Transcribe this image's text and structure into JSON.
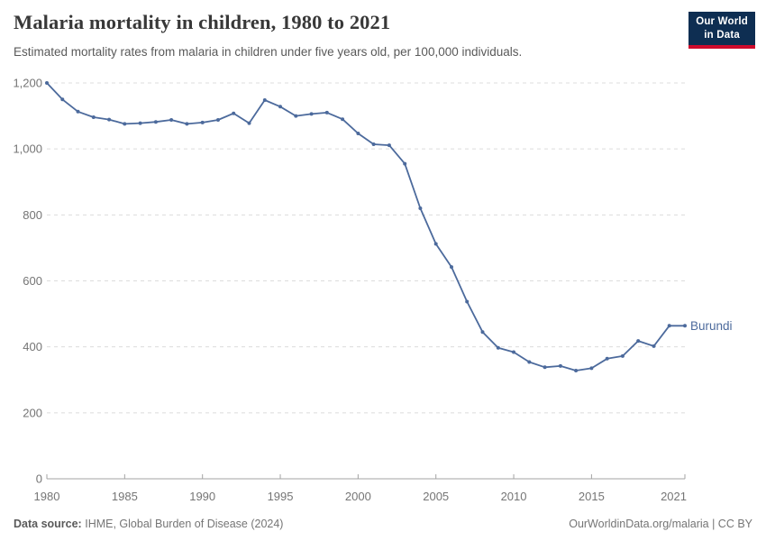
{
  "header": {
    "title": "Malaria mortality in children, 1980 to 2021",
    "subtitle": "Estimated mortality rates from malaria in children under five years old, per 100,000 individuals."
  },
  "logo": {
    "line1": "Our World",
    "line2": "in Data"
  },
  "footer": {
    "source_label": "Data source:",
    "source_value": "IHME, Global Burden of Disease (2024)",
    "right_text": "OurWorldinData.org/malaria | CC BY"
  },
  "colors": {
    "accent": "#4c6a9c",
    "logo_bg": "#0e2e52",
    "logo_red": "#cf0a2c",
    "gridline": "#dcdcdc",
    "axis": "#a3a3a3",
    "tick_text": "#757575"
  },
  "chart_data": {
    "type": "line",
    "title": "Malaria mortality in children, 1980 to 2021",
    "subtitle": "Estimated mortality rates from malaria in children under five years old, per 100,000 individuals.",
    "xlabel": "",
    "ylabel": "",
    "xlim": [
      1980,
      2021
    ],
    "ylim": [
      0,
      1200
    ],
    "x_ticks": [
      1980,
      1985,
      1990,
      1995,
      2000,
      2005,
      2010,
      2015,
      2021
    ],
    "y_ticks": [
      0,
      200,
      400,
      600,
      800,
      1000,
      1200
    ],
    "grid": true,
    "legend": "end-of-line-label",
    "series": [
      {
        "name": "Burundi",
        "color": "#4c6a9c",
        "x": [
          1980,
          1981,
          1982,
          1983,
          1984,
          1985,
          1986,
          1987,
          1988,
          1989,
          1990,
          1991,
          1992,
          1993,
          1994,
          1995,
          1996,
          1997,
          1998,
          1999,
          2000,
          2001,
          2002,
          2003,
          2004,
          2005,
          2006,
          2007,
          2008,
          2009,
          2010,
          2011,
          2012,
          2013,
          2014,
          2015,
          2016,
          2017,
          2018,
          2019,
          2020,
          2021
        ],
        "values": [
          1200,
          1150,
          1113,
          1096,
          1089,
          1076,
          1078,
          1082,
          1088,
          1076,
          1080,
          1088,
          1108,
          1078,
          1148,
          1128,
          1100,
          1106,
          1110,
          1090,
          1047,
          1014,
          1011,
          955,
          820,
          712,
          642,
          537,
          445,
          397,
          384,
          354,
          338,
          342,
          328,
          335,
          364,
          372,
          418,
          402,
          464,
          464
        ]
      }
    ]
  }
}
